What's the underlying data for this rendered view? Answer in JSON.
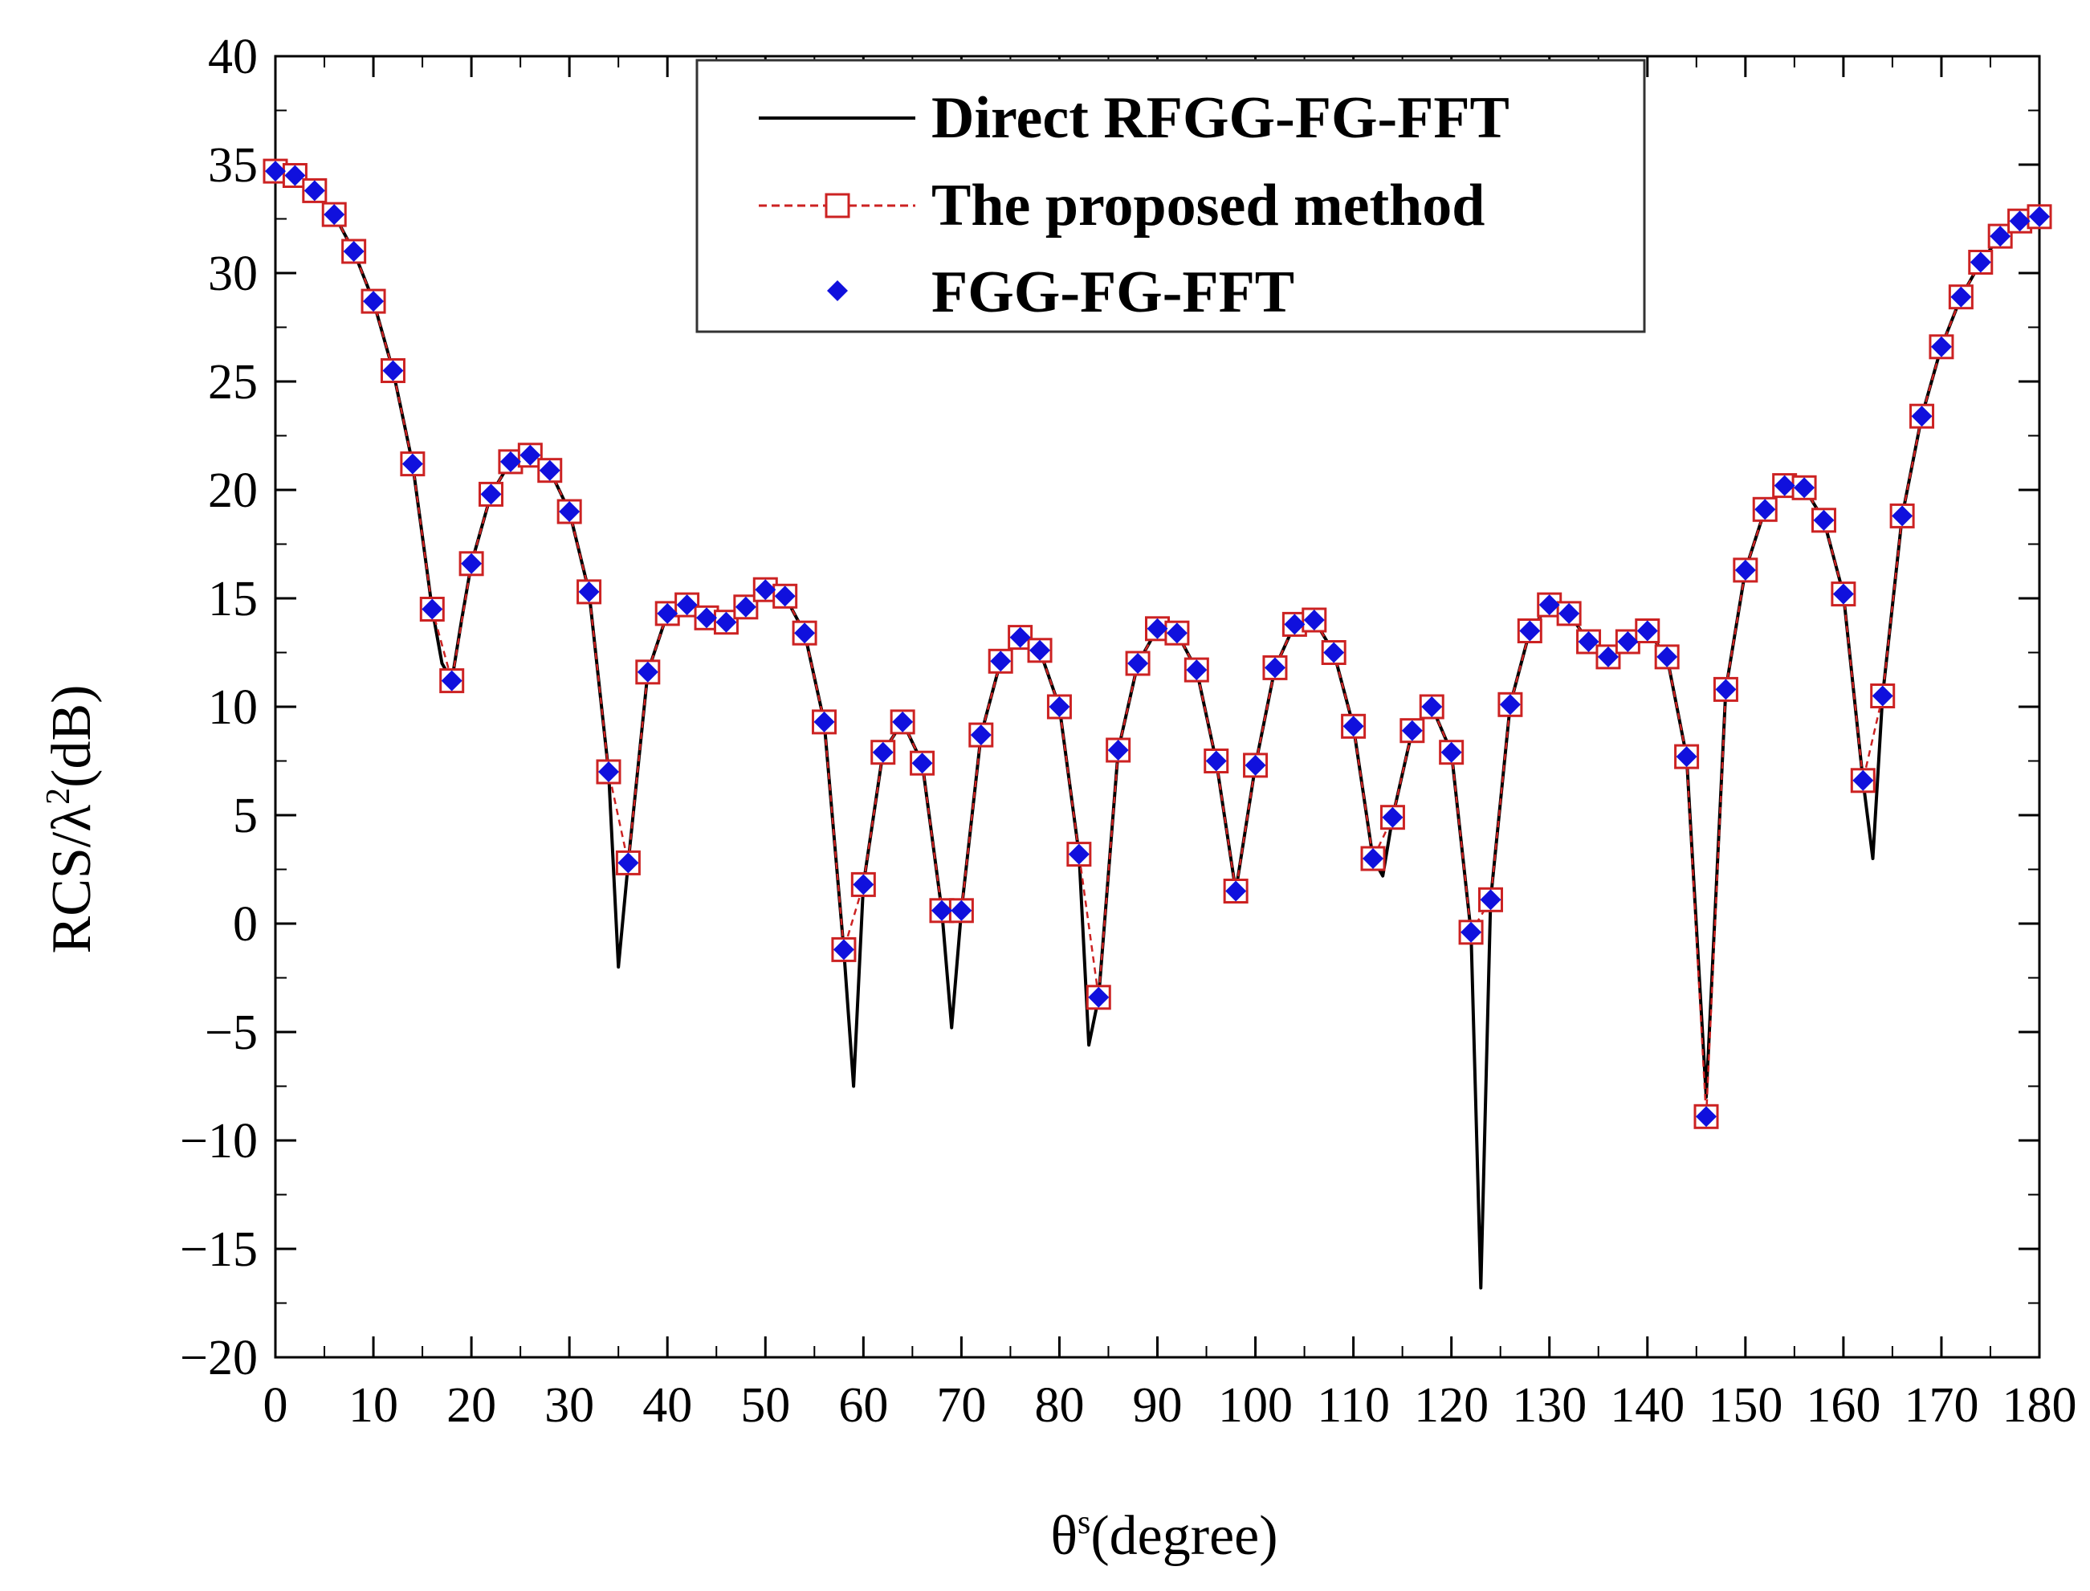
{
  "chart_data": {
    "type": "line",
    "title": "",
    "xlabel": "θ",
    "xlabel_superscript": "s",
    "xlabel_suffix": "(degree)",
    "ylabel": "RCS/λ",
    "ylabel_superscript": "2",
    "ylabel_suffix": "(dB)",
    "xlim": [
      0,
      180
    ],
    "ylim": [
      -20,
      40
    ],
    "x_ticks": [
      0,
      10,
      20,
      30,
      40,
      50,
      60,
      70,
      80,
      90,
      100,
      110,
      120,
      130,
      140,
      150,
      160,
      170,
      180
    ],
    "y_ticks": [
      -20,
      -15,
      -10,
      -5,
      0,
      5,
      10,
      15,
      20,
      25,
      30,
      35,
      40
    ],
    "x_tick_labels": [
      "0",
      "10",
      "20",
      "30",
      "40",
      "50",
      "60",
      "70",
      "80",
      "90",
      "100",
      "110",
      "120",
      "130",
      "140",
      "150",
      "160",
      "170",
      "180"
    ],
    "y_tick_labels": [
      "−20",
      "−15",
      "−10",
      "−5",
      "0",
      "5",
      "10",
      "15",
      "20",
      "25",
      "30",
      "35",
      "40"
    ],
    "legend_position": "top-center",
    "series": [
      {
        "name": "Direct RFGG-FG-FFT",
        "style": "solid-line",
        "color": "#000000",
        "x": [
          0,
          2,
          4,
          6,
          8,
          10,
          12,
          14,
          16,
          17,
          18,
          19,
          20,
          22,
          24,
          26,
          28,
          30,
          32,
          34,
          35,
          36,
          38,
          40,
          42,
          44,
          46,
          48,
          50,
          52,
          54,
          56,
          58,
          59,
          60,
          62,
          64,
          66,
          68,
          69,
          70,
          72,
          74,
          76,
          78,
          80,
          82,
          83,
          84,
          86,
          88,
          90,
          92,
          94,
          96,
          98,
          100,
          102,
          104,
          106,
          108,
          110,
          112,
          113,
          114,
          116,
          118,
          120,
          122,
          123,
          124,
          126,
          128,
          130,
          132,
          134,
          136,
          138,
          140,
          142,
          144,
          146,
          148,
          150,
          152,
          154,
          156,
          158,
          160,
          162,
          163,
          164,
          166,
          168,
          170,
          172,
          174,
          176,
          178,
          180
        ],
        "values": [
          34.7,
          34.5,
          33.8,
          32.7,
          31.0,
          28.7,
          25.5,
          21.2,
          14.5,
          12.0,
          11.2,
          14.0,
          16.6,
          19.8,
          21.3,
          21.6,
          20.9,
          19.0,
          15.3,
          7.0,
          -2.0,
          2.8,
          11.6,
          14.3,
          14.7,
          14.1,
          13.9,
          14.6,
          15.4,
          15.1,
          13.4,
          9.3,
          -1.2,
          -7.5,
          1.8,
          7.9,
          9.3,
          7.4,
          0.6,
          -4.8,
          0.6,
          8.7,
          12.1,
          13.2,
          12.6,
          10.0,
          3.2,
          -5.6,
          -3.4,
          8.0,
          12.0,
          13.6,
          13.4,
          11.7,
          7.5,
          1.5,
          7.3,
          11.8,
          13.8,
          14.0,
          12.5,
          9.1,
          3.0,
          2.2,
          4.9,
          8.9,
          10.0,
          7.9,
          -0.4,
          -16.8,
          1.1,
          10.1,
          13.5,
          14.7,
          14.3,
          13.0,
          12.3,
          13.0,
          13.5,
          12.3,
          7.7,
          -8.0,
          10.8,
          16.3,
          19.1,
          20.2,
          20.1,
          18.6,
          15.2,
          6.6,
          3.0,
          10.5,
          18.8,
          23.4,
          26.6,
          28.9,
          30.5,
          31.7,
          32.4,
          32.6
        ]
      },
      {
        "name": "The proposed method",
        "style": "dashed-line-open-square",
        "color": "#cc2222",
        "x": [
          0,
          2,
          4,
          6,
          8,
          10,
          12,
          14,
          16,
          18,
          20,
          22,
          24,
          26,
          28,
          30,
          32,
          34,
          36,
          38,
          40,
          42,
          44,
          46,
          48,
          50,
          52,
          54,
          56,
          58,
          60,
          62,
          64,
          66,
          68,
          70,
          72,
          74,
          76,
          78,
          80,
          82,
          84,
          86,
          88,
          90,
          92,
          94,
          96,
          98,
          100,
          102,
          104,
          106,
          108,
          110,
          112,
          114,
          116,
          118,
          120,
          122,
          124,
          126,
          128,
          130,
          132,
          134,
          136,
          138,
          140,
          142,
          144,
          146,
          148,
          150,
          152,
          154,
          156,
          158,
          160,
          162,
          164,
          166,
          168,
          170,
          172,
          174,
          176,
          178,
          180
        ],
        "values": [
          34.7,
          34.5,
          33.8,
          32.7,
          31.0,
          28.7,
          25.5,
          21.2,
          14.5,
          11.2,
          16.6,
          19.8,
          21.3,
          21.6,
          20.9,
          19.0,
          15.3,
          7.0,
          2.8,
          11.6,
          14.3,
          14.7,
          14.1,
          13.9,
          14.6,
          15.4,
          15.1,
          13.4,
          9.3,
          -1.2,
          1.8,
          7.9,
          9.3,
          7.4,
          0.6,
          0.6,
          8.7,
          12.1,
          13.2,
          12.6,
          10.0,
          3.2,
          -3.4,
          8.0,
          12.0,
          13.6,
          13.4,
          11.7,
          7.5,
          1.5,
          7.3,
          11.8,
          13.8,
          14.0,
          12.5,
          9.1,
          3.0,
          4.9,
          8.9,
          10.0,
          7.9,
          -0.4,
          1.1,
          10.1,
          13.5,
          14.7,
          14.3,
          13.0,
          12.3,
          13.0,
          13.5,
          12.3,
          7.7,
          -8.9,
          10.8,
          16.3,
          19.1,
          20.2,
          20.1,
          18.6,
          15.2,
          6.6,
          10.5,
          18.8,
          23.4,
          26.6,
          28.9,
          30.5,
          31.7,
          32.4,
          32.6
        ]
      },
      {
        "name": "FGG-FG-FFT",
        "style": "filled-diamond",
        "color": "#1010dd",
        "x": [
          0,
          2,
          4,
          6,
          8,
          10,
          12,
          14,
          16,
          18,
          20,
          22,
          24,
          26,
          28,
          30,
          32,
          34,
          36,
          38,
          40,
          42,
          44,
          46,
          48,
          50,
          52,
          54,
          56,
          58,
          60,
          62,
          64,
          66,
          68,
          70,
          72,
          74,
          76,
          78,
          80,
          82,
          84,
          86,
          88,
          90,
          92,
          94,
          96,
          98,
          100,
          102,
          104,
          106,
          108,
          110,
          112,
          114,
          116,
          118,
          120,
          122,
          124,
          126,
          128,
          130,
          132,
          134,
          136,
          138,
          140,
          142,
          144,
          146,
          148,
          150,
          152,
          154,
          156,
          158,
          160,
          162,
          164,
          166,
          168,
          170,
          172,
          174,
          176,
          178,
          180
        ],
        "values": [
          34.7,
          34.5,
          33.8,
          32.7,
          31.0,
          28.7,
          25.5,
          21.2,
          14.5,
          11.2,
          16.6,
          19.8,
          21.3,
          21.6,
          20.9,
          19.0,
          15.3,
          7.0,
          2.8,
          11.6,
          14.3,
          14.7,
          14.1,
          13.9,
          14.6,
          15.4,
          15.1,
          13.4,
          9.3,
          -1.2,
          1.8,
          7.9,
          9.3,
          7.4,
          0.6,
          0.6,
          8.7,
          12.1,
          13.2,
          12.6,
          10.0,
          3.2,
          -3.4,
          8.0,
          12.0,
          13.6,
          13.4,
          11.7,
          7.5,
          1.5,
          7.3,
          11.8,
          13.8,
          14.0,
          12.5,
          9.1,
          3.0,
          4.9,
          8.9,
          10.0,
          7.9,
          -0.4,
          1.1,
          10.1,
          13.5,
          14.7,
          14.3,
          13.0,
          12.3,
          13.0,
          13.5,
          12.3,
          7.7,
          -8.9,
          10.8,
          16.3,
          19.1,
          20.2,
          20.1,
          18.6,
          15.2,
          6.6,
          10.5,
          18.8,
          23.4,
          26.6,
          28.9,
          30.5,
          31.7,
          32.4,
          32.6
        ]
      }
    ]
  }
}
